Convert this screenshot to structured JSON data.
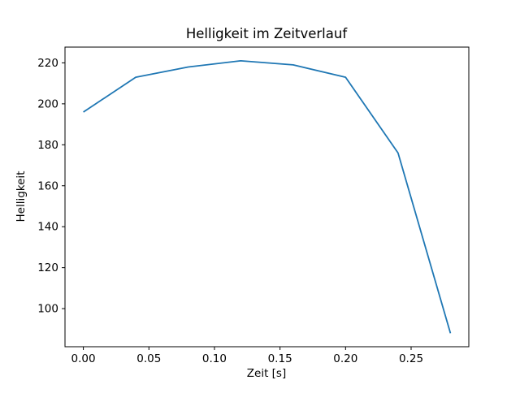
{
  "chart_data": {
    "type": "line",
    "title": "Helligkeit im Zeitverlauf",
    "xlabel": "Zeit [s]",
    "ylabel": "Helligkeit",
    "x": [
      0.0,
      0.04,
      0.08,
      0.12,
      0.16,
      0.2,
      0.24,
      0.28
    ],
    "y": [
      196,
      213,
      218,
      221,
      219,
      213,
      176,
      88
    ],
    "x_tick_labels": [
      "0.00",
      "0.05",
      "0.10",
      "0.15",
      "0.20",
      "0.25"
    ],
    "x_tick_values": [
      0.0,
      0.05,
      0.1,
      0.15,
      0.2,
      0.25
    ],
    "y_tick_labels": [
      "100",
      "120",
      "140",
      "160",
      "180",
      "200",
      "220"
    ],
    "y_tick_values": [
      100,
      120,
      140,
      160,
      180,
      200,
      220
    ],
    "xlim": [
      -0.014,
      0.294
    ],
    "ylim": [
      81.4,
      227.7
    ],
    "line_color": "#1f77b4",
    "axis_color": "#000000",
    "grid": false,
    "legend_position": "none"
  }
}
